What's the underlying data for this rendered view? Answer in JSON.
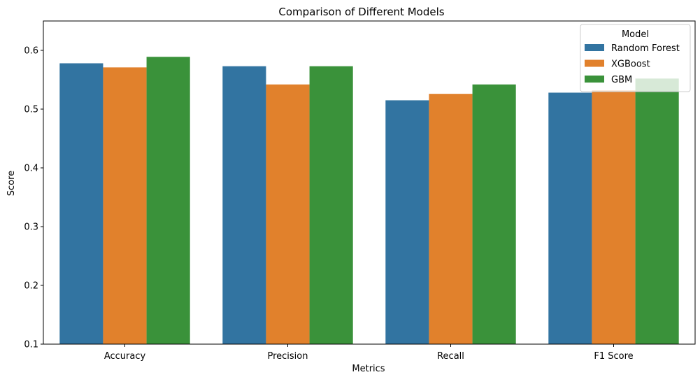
{
  "chart_data": {
    "type": "bar",
    "title": "Comparison of Different Models",
    "xlabel": "Metrics",
    "ylabel": "Score",
    "ylim": [
      0.1,
      0.65
    ],
    "yticks": [
      0.1,
      0.2,
      0.3,
      0.4,
      0.5,
      0.6
    ],
    "ytick_labels": [
      "0.1",
      "0.2",
      "0.3",
      "0.4",
      "0.5",
      "0.6"
    ],
    "grid": false,
    "categories": [
      "Accuracy",
      "Precision",
      "Recall",
      "F1 Score"
    ],
    "legend": {
      "title": "Model",
      "placement": "top-right"
    },
    "series": [
      {
        "name": "Random Forest",
        "color": "#3274a1",
        "values": [
          0.578,
          0.573,
          0.515,
          0.528
        ]
      },
      {
        "name": "XGBoost",
        "color": "#e1812c",
        "values": [
          0.571,
          0.542,
          0.526,
          0.532
        ]
      },
      {
        "name": "GBM",
        "color": "#3a923a",
        "values": [
          0.589,
          0.573,
          0.542,
          0.552
        ]
      }
    ]
  }
}
